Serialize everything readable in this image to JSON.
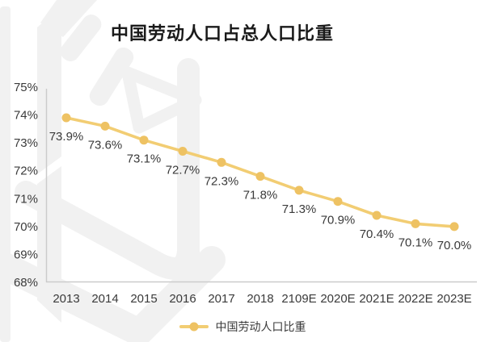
{
  "title": "中国劳动人口占总人口比重",
  "legend": {
    "series_label": "中国劳动人口比重"
  },
  "colors": {
    "line": "#F2CD73",
    "marker": "#EEC263",
    "axis": "#CBCBCB",
    "label": "#3A3A3A",
    "title": "#1A1A1A",
    "watermark": "#F1F1F1",
    "background": "#FFFFFF"
  },
  "chart_data": {
    "type": "line",
    "title": "中国劳动人口占总人口比重",
    "categories": [
      "2013",
      "2014",
      "2015",
      "2016",
      "2017",
      "2018",
      "2109E",
      "2020E",
      "2021E",
      "2022E",
      "2023E"
    ],
    "series": [
      {
        "name": "中国劳动人口比重",
        "values": [
          73.9,
          73.6,
          73.1,
          72.7,
          72.3,
          71.8,
          71.3,
          70.9,
          70.4,
          70.1,
          70.0
        ]
      }
    ],
    "data_labels": [
      "73.9%",
      "73.6%",
      "73.1%",
      "72.7%",
      "72.3%",
      "71.8%",
      "71.3%",
      "70.9%",
      "70.4%",
      "70.1%",
      "70.0%"
    ],
    "y_ticks": [
      "75%",
      "74%",
      "73%",
      "72%",
      "71%",
      "70%",
      "69%",
      "68%"
    ],
    "ylim": [
      68,
      75
    ],
    "xlabel": "",
    "ylabel": "",
    "grid": false,
    "legend_position": "bottom"
  }
}
